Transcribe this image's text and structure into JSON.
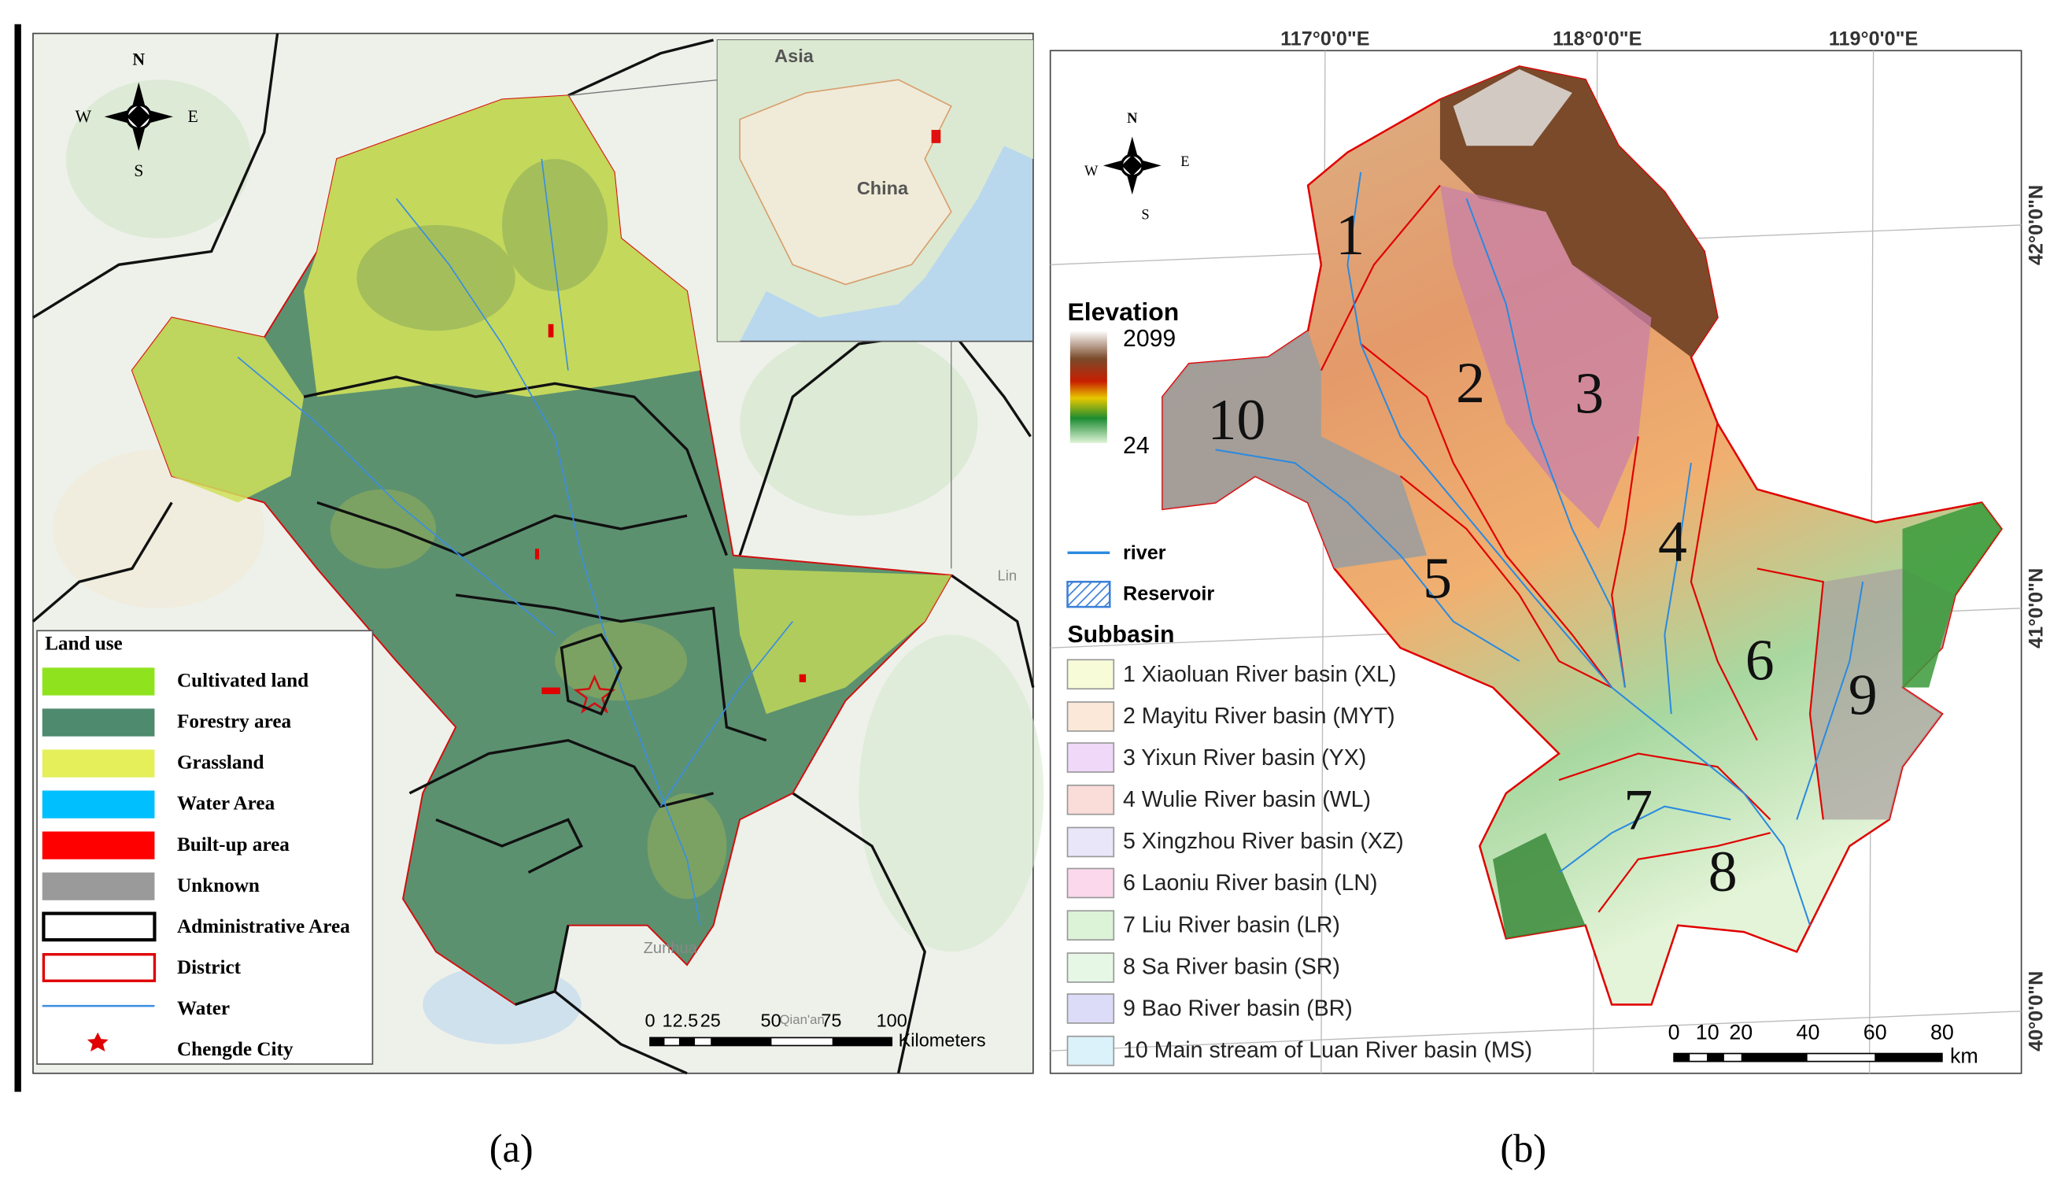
{
  "panel_a": {
    "label": "(a)",
    "compass": {
      "n": "N",
      "s": "S",
      "e": "E",
      "w": "W"
    },
    "inset_labels": [
      "Asia",
      "China"
    ],
    "place_names": [
      "Zunhua",
      "Qian'an",
      "Lin"
    ],
    "legend": {
      "title": "Land use",
      "items": [
        "Cultivated land",
        "Forestry area",
        "Grassland",
        "Water Area",
        "Built-up area",
        "Unknown",
        "Administrative Area",
        "District",
        "Water",
        "Chengde City"
      ]
    },
    "scale_bar": {
      "ticks": [
        0,
        12.5,
        25,
        50,
        75,
        100
      ],
      "unit": "Kilometers"
    }
  },
  "panel_b": {
    "label": "(b)",
    "compass": {
      "n": "N",
      "s": "S",
      "e": "E",
      "w": "W"
    },
    "longitude_labels": [
      "117°0'0\"E",
      "118°0'0\"E",
      "119°0'0\"E"
    ],
    "latitude_labels": [
      "42°0'0\"N",
      "41°0'0\"N",
      "40°0'0\"N"
    ],
    "elevation_legend": {
      "title": "Elevation",
      "max": 2099,
      "min": 24
    },
    "river_label": "river",
    "reservoir_label": "Reservoir",
    "subbasin_legend": {
      "title": "Subbasin",
      "items": [
        "1 Xiaoluan River basin (XL)",
        "2 Mayitu River basin (MYT)",
        "3 Yixun River basin (YX)",
        "4 Wulie River basin (WL)",
        "5 Xingzhou River basin (XZ)",
        "6 Laoniu River basin (LN)",
        "7 Liu River basin (LR)",
        "8 Sa River basin (SR)",
        "9 Bao River basin (BR)",
        "10 Main stream of Luan River basin (MS)"
      ]
    },
    "basin_numbers": [
      1,
      2,
      3,
      4,
      5,
      6,
      7,
      8,
      9,
      10
    ],
    "scale_bar": {
      "ticks": [
        0,
        10,
        20,
        40,
        60,
        80
      ],
      "unit": "km"
    }
  }
}
